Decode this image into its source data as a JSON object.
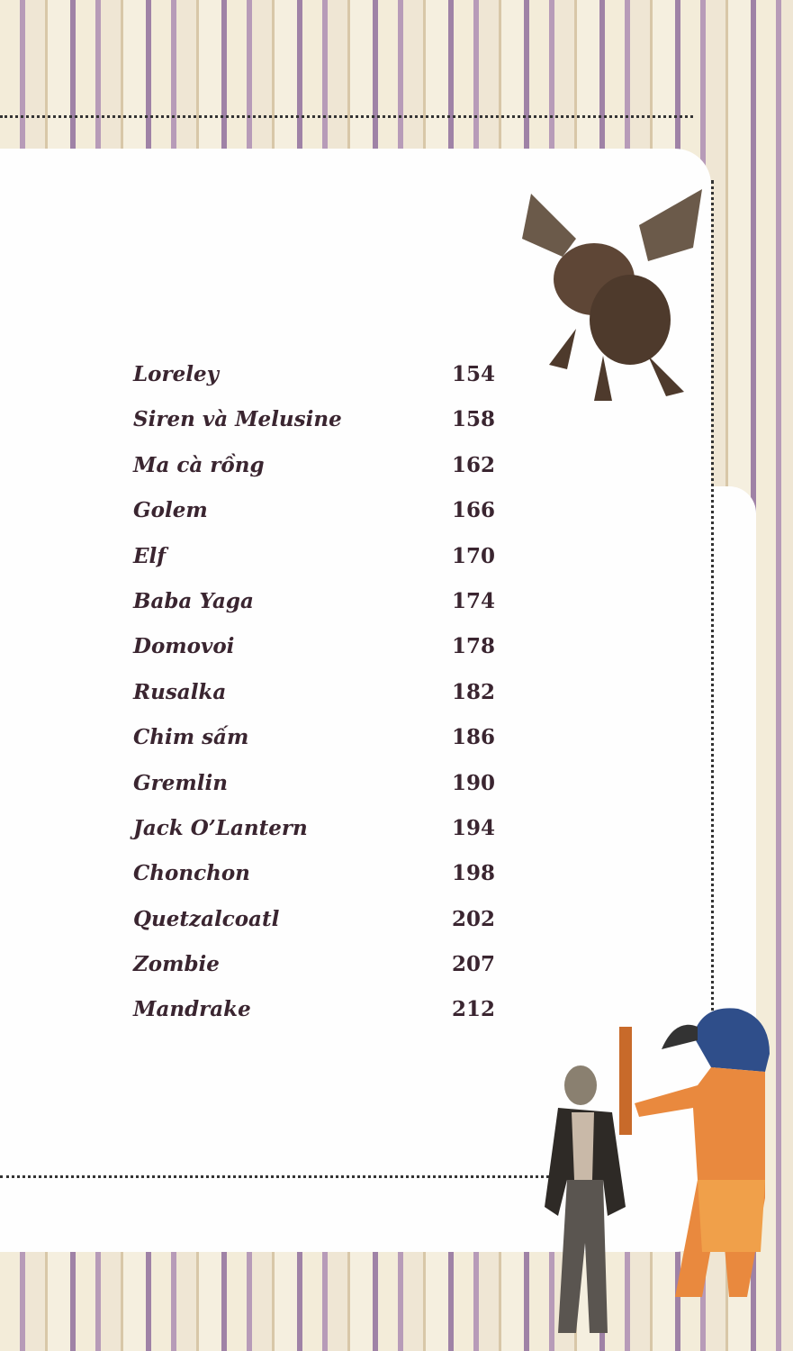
{
  "toc": {
    "entries": [
      {
        "title": "Loreley",
        "page": "154"
      },
      {
        "title": "Siren và Melusine",
        "page": "158"
      },
      {
        "title": "Ma cà rồng",
        "page": "162"
      },
      {
        "title": "Golem",
        "page": "166"
      },
      {
        "title": "Elf",
        "page": "170"
      },
      {
        "title": "Baba Yaga",
        "page": "174"
      },
      {
        "title": "Domovoi",
        "page": "178"
      },
      {
        "title": "Rusalka",
        "page": "182"
      },
      {
        "title": "Chim sấm",
        "page": "186"
      },
      {
        "title": "Gremlin",
        "page": "190"
      },
      {
        "title": "Jack O’Lantern",
        "page": "194"
      },
      {
        "title": "Chonchon",
        "page": "198"
      },
      {
        "title": "Quetzalcoatl",
        "page": "202"
      },
      {
        "title": "Zombie",
        "page": "207"
      },
      {
        "title": "Mandrake",
        "page": "212"
      }
    ]
  },
  "illustrations": [
    "gremlin-gargoyle",
    "zombie",
    "thoth-ibis-god"
  ],
  "colors": {
    "text": "#3a2530",
    "stripe_purple": "#9f82a6",
    "paper": "#f3ecd9"
  }
}
